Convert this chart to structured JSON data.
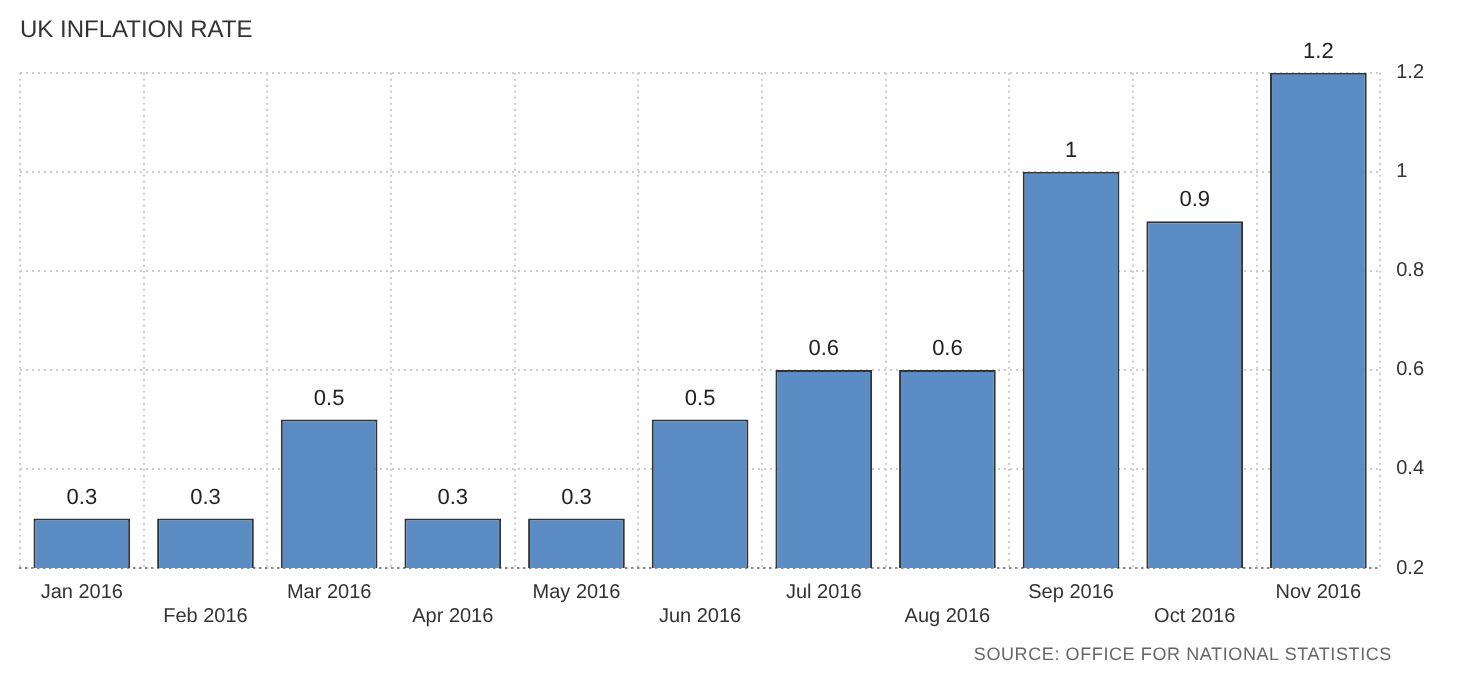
{
  "chart_data": {
    "type": "bar",
    "title": "UK INFLATION RATE",
    "categories": [
      "Jan 2016",
      "Feb 2016",
      "Mar 2016",
      "Apr 2016",
      "May 2016",
      "Jun 2016",
      "Jul 2016",
      "Aug 2016",
      "Sep 2016",
      "Oct 2016",
      "Nov 2016"
    ],
    "values": [
      0.3,
      0.3,
      0.5,
      0.3,
      0.3,
      0.5,
      0.6,
      0.6,
      1,
      0.9,
      1.2
    ],
    "color": "#5b8dc4",
    "ylim": [
      0.2,
      1.2
    ],
    "yticks": [
      0.2,
      0.4,
      0.6,
      0.8,
      1,
      1.2
    ],
    "grid": true,
    "data_labels": true,
    "legend": false,
    "annotations": [
      "SOURCE: OFFICE FOR NATIONAL STATISTICS"
    ]
  }
}
